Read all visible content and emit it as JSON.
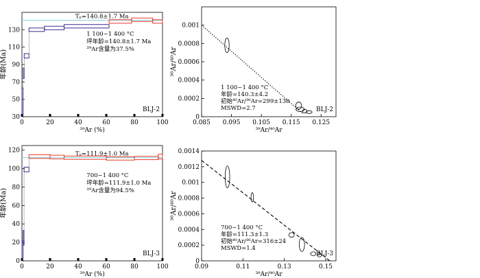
{
  "chart_data": [
    {
      "type": "step",
      "panel": "top-left",
      "sample": "BLJ-2",
      "ylabel": "年龄(Ma)",
      "xlabel": "³⁹Ar (%)",
      "xlim": [
        0,
        100
      ],
      "ylim": [
        30,
        150
      ],
      "xticks": [
        0,
        20,
        40,
        60,
        80,
        100
      ],
      "yticks": [
        30,
        50,
        70,
        90,
        110,
        130
      ],
      "plateau_age": 140.8,
      "plateau_line_color": "#7fd3dd",
      "annotations": {
        "tp": "Tₚ=140.8±1.7 Ma",
        "line1": "1 100~1 400 °C",
        "line2": "坪年龄=140.8±1.7 Ma",
        "line3": "³⁹Ar含量为37.5%"
      },
      "steps": [
        {
          "x0": 0,
          "x1": 0.8,
          "age": 47,
          "err": 16,
          "color": "#3b2c8f"
        },
        {
          "x0": 0.8,
          "x1": 1.6,
          "age": 80,
          "err": 6,
          "color": "#3b2c8f"
        },
        {
          "x0": 1.6,
          "x1": 5,
          "age": 100,
          "err": 2.5,
          "color": "#3b2c8f"
        },
        {
          "x0": 5,
          "x1": 16,
          "age": 130,
          "err": 2,
          "color": "#3b2c8f"
        },
        {
          "x0": 16,
          "x1": 30,
          "age": 132,
          "err": 2,
          "color": "#3b2c8f"
        },
        {
          "x0": 30,
          "x1": 62,
          "age": 134,
          "err": 2,
          "color": "#3b2c8f"
        },
        {
          "x0": 62,
          "x1": 78,
          "age": 139.5,
          "err": 2,
          "color": "#e8392a"
        },
        {
          "x0": 78,
          "x1": 93,
          "age": 141.5,
          "err": 2,
          "color": "#e8392a"
        },
        {
          "x0": 93,
          "x1": 100,
          "age": 139.5,
          "err": 2,
          "color": "#e8392a"
        }
      ]
    },
    {
      "type": "scatter-ellipse",
      "panel": "top-right",
      "sample": "BLJ-2",
      "ylabel": "³⁶Ar/⁴⁰Ar",
      "xlabel": "³⁹Ar/⁴⁰Ar",
      "xlim": [
        0.085,
        0.13
      ],
      "ylim": [
        0,
        0.0012
      ],
      "xticks": [
        0.085,
        0.095,
        0.105,
        0.115,
        0.125
      ],
      "yticks": [
        0,
        0.0002,
        0.0004,
        0.0006,
        0.0008,
        0.001
      ],
      "regression": {
        "x": [
          0.085,
          0.119
        ],
        "y": [
          0.001,
          3e-05
        ],
        "style": "dotted"
      },
      "annotations": {
        "line1": "1 100~1 400 °C",
        "line2": "年龄=140.3±4.2",
        "line3": "初始⁴⁰Ar/³⁶Ar=299±130",
        "line4": "MSWD=2.7"
      },
      "points": [
        {
          "x": 0.0935,
          "y": 0.00078,
          "rx": 0.00075,
          "ry": 8e-05
        },
        {
          "x": 0.1175,
          "y": 0.00012,
          "rx": 0.001,
          "ry": 4e-05
        },
        {
          "x": 0.118,
          "y": 8e-05,
          "rx": 0.0014,
          "ry": 2.5e-05
        },
        {
          "x": 0.1195,
          "y": 6e-05,
          "rx": 0.0008,
          "ry": 2e-05
        },
        {
          "x": 0.121,
          "y": 5e-05,
          "rx": 0.001,
          "ry": 1.5e-05
        }
      ]
    },
    {
      "type": "step",
      "panel": "bottom-left",
      "sample": "BLJ-3",
      "ylabel": "年龄(Ma)",
      "xlabel": "³⁹Ar (%)",
      "xlim": [
        0,
        100
      ],
      "ylim": [
        0,
        125
      ],
      "xticks": [
        0,
        20,
        40,
        60,
        80,
        100
      ],
      "yticks": [
        0,
        20,
        40,
        60,
        80,
        100,
        120
      ],
      "plateau_age": 111.9,
      "plateau_line_color": "#7fd3dd",
      "annotations": {
        "tp": "Tₚ=111.9±1.0 Ma",
        "line1": "700~1 400 °C",
        "line2": "坪年龄=111.9±1.0 Ma",
        "line3": "³⁹Ar含量为94.5%"
      },
      "steps": [
        {
          "x0": 0,
          "x1": 0.8,
          "age": 12,
          "err": 10,
          "color": "#3b2c8f"
        },
        {
          "x0": 0.8,
          "x1": 1.5,
          "age": 25,
          "err": 8,
          "color": "#3b2c8f"
        },
        {
          "x0": 1.5,
          "x1": 5,
          "age": 99,
          "err": 2.5,
          "color": "#3b2c8f"
        },
        {
          "x0": 5,
          "x1": 20,
          "age": 113,
          "err": 2,
          "color": "#e8392a"
        },
        {
          "x0": 20,
          "x1": 30,
          "age": 112.5,
          "err": 2,
          "color": "#e8392a"
        },
        {
          "x0": 30,
          "x1": 60,
          "age": 111.8,
          "err": 1.8,
          "color": "#e8392a"
        },
        {
          "x0": 60,
          "x1": 80,
          "age": 111,
          "err": 1.8,
          "color": "#e8392a"
        },
        {
          "x0": 80,
          "x1": 97,
          "age": 111.5,
          "err": 1.8,
          "color": "#e8392a"
        },
        {
          "x0": 97,
          "x1": 100,
          "age": 113,
          "err": 2.5,
          "color": "#e8392a"
        }
      ]
    },
    {
      "type": "scatter-ellipse",
      "panel": "bottom-right",
      "sample": "BLJ-3",
      "ylabel": "³⁶Ar/⁴⁰Ar",
      "xlabel": "³⁹Ar/⁴⁰Ar",
      "xlim": [
        0.09,
        0.155
      ],
      "ylim": [
        0,
        0.0014
      ],
      "xticks": [
        0.09,
        0.11,
        0.13,
        0.15
      ],
      "yticks": [
        0,
        0.0002,
        0.0004,
        0.0006,
        0.0008,
        0.001,
        0.0012,
        0.0014
      ],
      "regression": {
        "x": [
          0.09,
          0.152
        ],
        "y": [
          0.00128,
          0.0
        ],
        "style": "dashed"
      },
      "annotations": {
        "line1": "700~1 400 °C",
        "line2": "年龄=111.3±1.3",
        "line3": "初始⁴⁰Ar/³⁶Ar=316±24",
        "line4": "MSWD=1.4"
      },
      "points": [
        {
          "x": 0.1025,
          "y": 0.00107,
          "rx": 0.0011,
          "ry": 0.00014
        },
        {
          "x": 0.1145,
          "y": 0.00081,
          "rx": 0.0006,
          "ry": 6e-05
        },
        {
          "x": 0.1335,
          "y": 0.00033,
          "rx": 0.0013,
          "ry": 3e-05
        },
        {
          "x": 0.1385,
          "y": 0.00021,
          "rx": 0.0013,
          "ry": 9e-05
        },
        {
          "x": 0.144,
          "y": 9e-05,
          "rx": 0.0013,
          "ry": 2.5e-05
        },
        {
          "x": 0.147,
          "y": 7e-05,
          "rx": 0.001,
          "ry": 2e-05
        }
      ]
    }
  ]
}
